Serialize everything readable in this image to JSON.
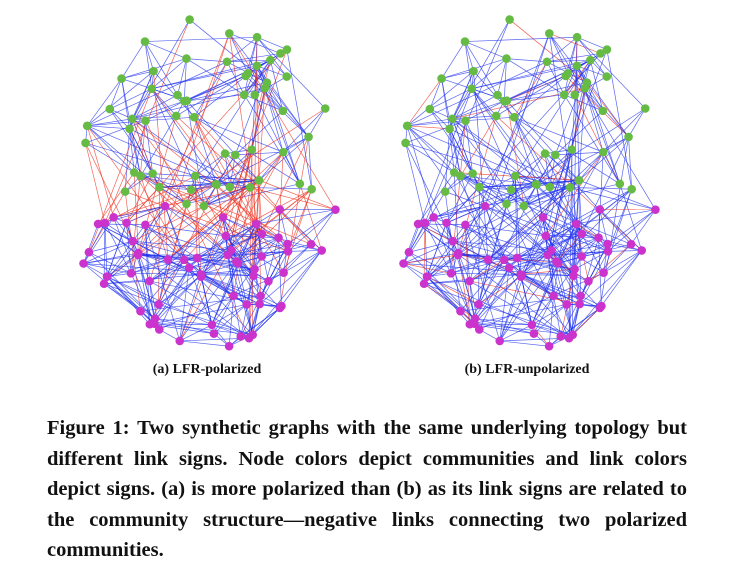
{
  "panels": [
    {
      "id": "a",
      "caption": "(a) LFR-polarized",
      "polarized": true
    },
    {
      "id": "b",
      "caption": "(b) LFR-unpolarized",
      "polarized": false
    }
  ],
  "figure_caption": "Figure 1: Two synthetic graphs with the same underlying topology but different link signs. Node colors depict communities and link colors depict signs. (a) is more polarized than (b) as its link signs are related to the community structure—negative links connecting two polarized communities.",
  "colors": {
    "community_green": "#66bb44",
    "community_magenta": "#cc33cc",
    "positive_link": "#2233ee",
    "negative_link": "#ee3322"
  }
}
